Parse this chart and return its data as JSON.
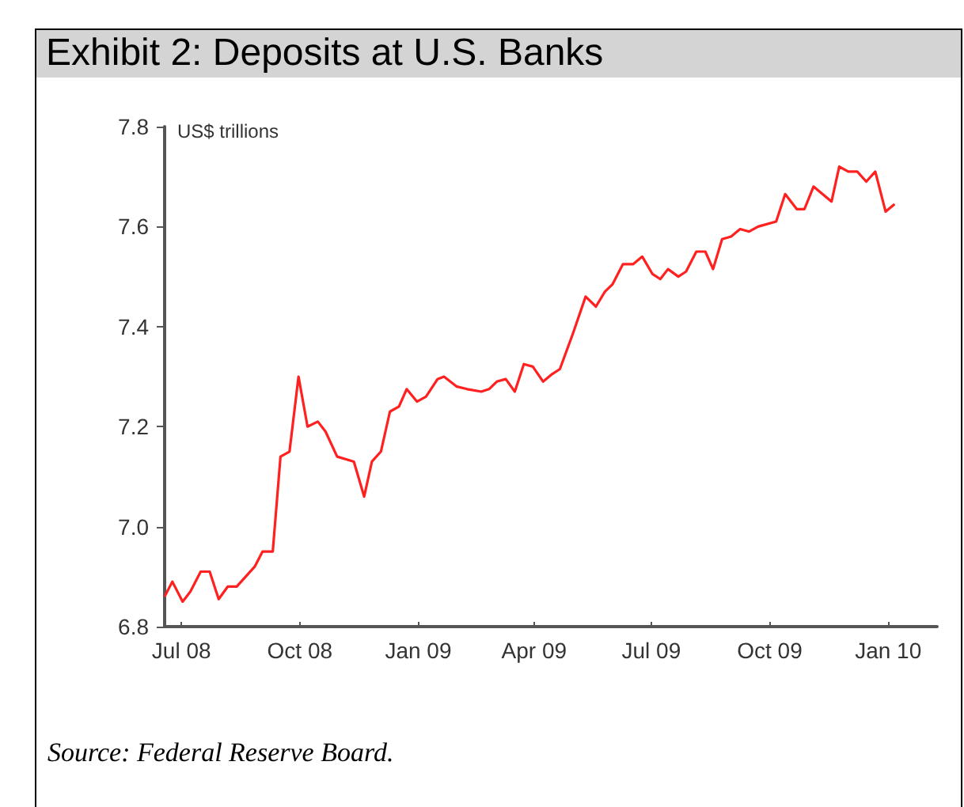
{
  "chart_data": {
    "type": "line",
    "title": "Exhibit 2: Deposits at U.S. Banks",
    "ylabel": "US$ trillions",
    "annotations": [
      "Source: Federal Reserve Board."
    ],
    "x": [
      "2008-06-18",
      "2008-06-24",
      "2008-07-02",
      "2008-07-08",
      "2008-07-16",
      "2008-07-23",
      "2008-07-30",
      "2008-08-06",
      "2008-08-13",
      "2008-08-27",
      "2008-09-02",
      "2008-09-10",
      "2008-09-16",
      "2008-09-23",
      "2008-09-30",
      "2008-10-07",
      "2008-10-15",
      "2008-10-21",
      "2008-10-30",
      "2008-11-12",
      "2008-11-20",
      "2008-11-26",
      "2008-12-03",
      "2008-12-10",
      "2008-12-17",
      "2008-12-23",
      "2008-12-31",
      "2009-01-07",
      "2009-01-16",
      "2009-01-21",
      "2009-01-31",
      "2009-02-08",
      "2009-02-19",
      "2009-02-25",
      "2009-03-03",
      "2009-03-10",
      "2009-03-17",
      "2009-03-24",
      "2009-03-31",
      "2009-04-08",
      "2009-04-15",
      "2009-04-21",
      "2009-05-01",
      "2009-05-11",
      "2009-05-19",
      "2009-05-26",
      "2009-06-01",
      "2009-06-09",
      "2009-06-17",
      "2009-06-24",
      "2009-07-02",
      "2009-07-08",
      "2009-07-14",
      "2009-07-22",
      "2009-07-28",
      "2009-08-05",
      "2009-08-12",
      "2009-08-18",
      "2009-08-25",
      "2009-09-01",
      "2009-09-08",
      "2009-09-15",
      "2009-09-22",
      "2009-10-06",
      "2009-10-13",
      "2009-10-22",
      "2009-10-28",
      "2009-11-04",
      "2009-11-11",
      "2009-11-18",
      "2009-11-24",
      "2009-12-01",
      "2009-12-08",
      "2009-12-15",
      "2009-12-22",
      "2009-12-30",
      "2010-01-06"
    ],
    "series": [
      {
        "color": "#ff2020",
        "values": [
          6.86,
          6.89,
          6.85,
          6.87,
          6.91,
          6.91,
          6.855,
          6.88,
          6.88,
          6.92,
          6.95,
          6.95,
          7.14,
          7.15,
          7.3,
          7.2,
          7.21,
          7.19,
          7.14,
          7.13,
          7.06,
          7.13,
          7.15,
          7.23,
          7.24,
          7.275,
          7.25,
          7.26,
          7.295,
          7.3,
          7.28,
          7.275,
          7.27,
          7.275,
          7.29,
          7.295,
          7.27,
          7.325,
          7.32,
          7.29,
          7.305,
          7.315,
          7.385,
          7.46,
          7.44,
          7.47,
          7.485,
          7.525,
          7.525,
          7.54,
          7.505,
          7.495,
          7.515,
          7.5,
          7.51,
          7.55,
          7.55,
          7.515,
          7.575,
          7.58,
          7.595,
          7.59,
          7.6,
          7.61,
          7.665,
          7.635,
          7.635,
          7.68,
          7.665,
          7.65,
          7.72,
          7.71,
          7.71,
          7.69,
          7.71,
          7.63,
          7.645
        ]
      }
    ],
    "xlim": [
      "2008-06-18",
      "2010-02-08"
    ],
    "xticks": [
      {
        "value": "2008-07-01",
        "label": "Jul 08"
      },
      {
        "value": "2008-10-01",
        "label": "Oct 08"
      },
      {
        "value": "2009-01-01",
        "label": "Jan 09"
      },
      {
        "value": "2009-04-01",
        "label": "Apr 09"
      },
      {
        "value": "2009-07-01",
        "label": "Jul 09"
      },
      {
        "value": "2009-10-01",
        "label": "Oct 09"
      },
      {
        "value": "2010-01-01",
        "label": "Jan 10"
      }
    ],
    "ylim": [
      6.8,
      7.8
    ],
    "yticks": [
      6.8,
      {
        "value": 7,
        "label": "7.0"
      },
      7.2,
      7.4,
      7.6,
      7.8
    ],
    "grid": false,
    "line_style": "solid"
  }
}
